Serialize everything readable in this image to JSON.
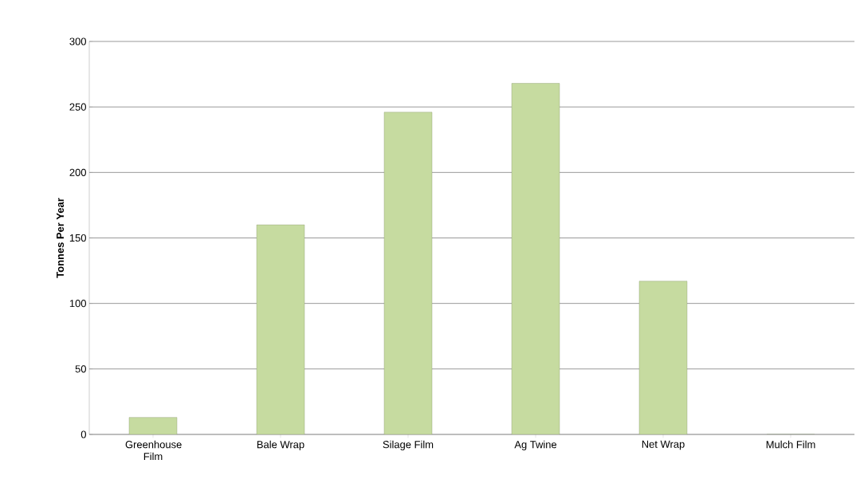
{
  "chart_data": {
    "type": "bar",
    "ylabel": "Tonnes Per Year",
    "categories": [
      "Greenhouse Film",
      "Bale Wrap",
      "Silage Film",
      "Ag Twine",
      "Net Wrap",
      "Mulch Film"
    ],
    "values": [
      13,
      160,
      246,
      268,
      117,
      0
    ],
    "color": "#c6dba0",
    "ylim": [
      0,
      300
    ],
    "yticks": [
      0,
      50,
      100,
      150,
      200,
      250,
      300
    ],
    "grid": "y"
  }
}
